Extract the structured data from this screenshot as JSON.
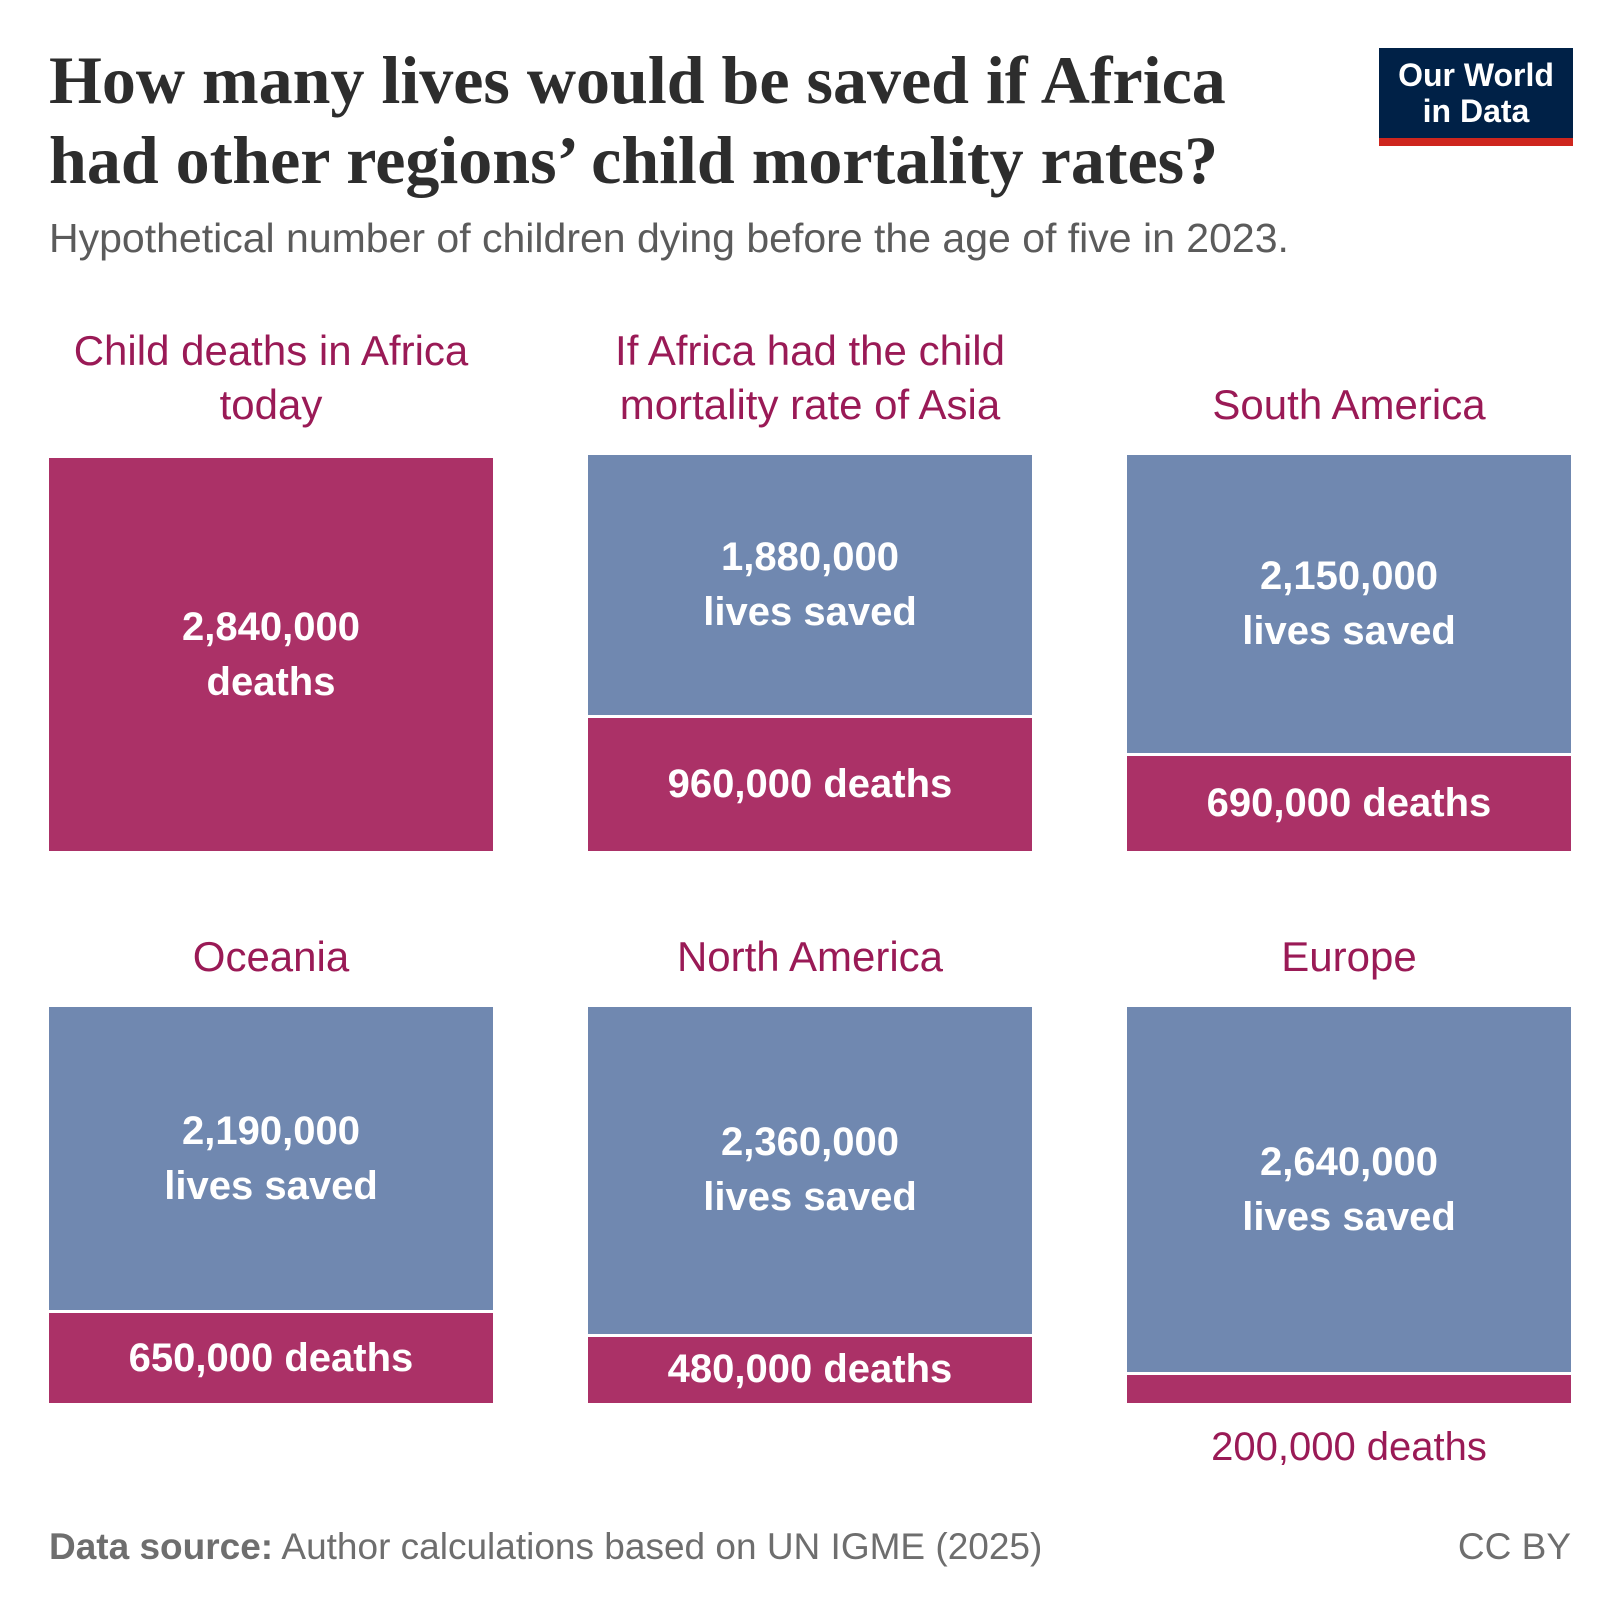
{
  "chart_data": {
    "type": "split-square",
    "title": "How many lives would be saved if Africa had other regions’ child mortality rates?",
    "subtitle": "Hypothetical number of children dying before the age of five in 2023.",
    "logo": "Our World in Data",
    "source_label": "Data source:",
    "source": "Author calculations based on UN IGME (2025)",
    "license": "CC BY",
    "deaths_color": "#ab3167",
    "saved_color": "#7088b0",
    "panels": [
      {
        "title": "Child deaths in Africa today",
        "deaths": 2840000,
        "deaths_label": "2,840,000 deaths"
      },
      {
        "title": "If Africa had the child mortality rate of Asia",
        "saved": 1880000,
        "saved_label": "1,880,000 lives saved",
        "deaths": 960000,
        "deaths_label": "960,000 deaths"
      },
      {
        "title": "South America",
        "saved": 2150000,
        "saved_label": "2,150,000 lives saved",
        "deaths": 690000,
        "deaths_label": "690,000 deaths"
      },
      {
        "title": "Oceania",
        "saved": 2190000,
        "saved_label": "2,190,000 lives saved",
        "deaths": 650000,
        "deaths_label": "650,000 deaths"
      },
      {
        "title": "North America",
        "saved": 2360000,
        "saved_label": "2,360,000 lives saved",
        "deaths": 480000,
        "deaths_label": "480,000 deaths"
      },
      {
        "title": "Europe",
        "saved": 2640000,
        "saved_label": "2,640,000 lives saved",
        "deaths": 200000,
        "deaths_label": "200,000 deaths"
      }
    ]
  }
}
